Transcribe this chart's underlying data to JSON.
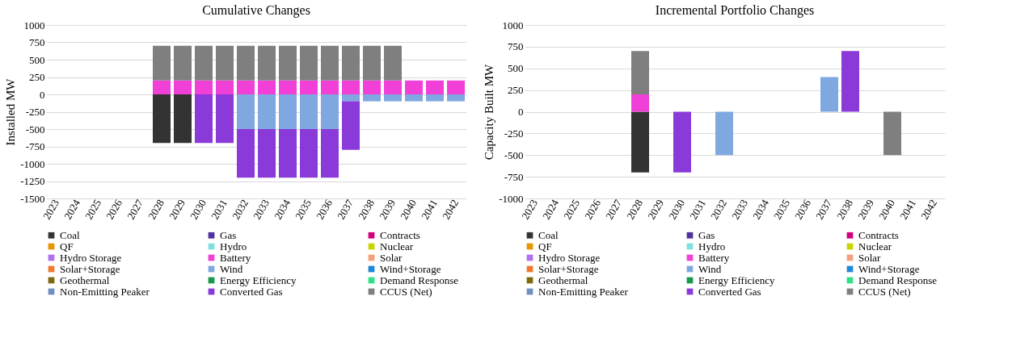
{
  "chart_data": [
    {
      "type": "bar",
      "title": "Cumulative Changes",
      "ylabel": "Installed MW",
      "stacked": true,
      "grid": "y",
      "legend": "bottom",
      "categories": [
        "2023",
        "2024",
        "2025",
        "2026",
        "2027",
        "2028",
        "2029",
        "2030",
        "2031",
        "2032",
        "2033",
        "2034",
        "2035",
        "2036",
        "2037",
        "2038",
        "2039",
        "2040",
        "2041",
        "2042"
      ],
      "ylim": [
        -1500,
        1000
      ],
      "yticks": [
        -1500,
        -1250,
        -1000,
        -750,
        -500,
        -250,
        0,
        250,
        500,
        750,
        1000
      ],
      "series": [
        {
          "name": "Coal",
          "color": "#333333",
          "values": [
            null,
            null,
            null,
            null,
            null,
            -700,
            -700,
            null,
            null,
            null,
            null,
            null,
            null,
            null,
            null,
            null,
            null,
            null,
            null,
            null
          ]
        },
        {
          "name": "Gas",
          "color": "#5030a0",
          "values": [
            null,
            null,
            null,
            null,
            null,
            null,
            null,
            null,
            null,
            null,
            null,
            null,
            null,
            null,
            null,
            null,
            null,
            null,
            null,
            null
          ]
        },
        {
          "name": "Contracts",
          "color": "#d0007f",
          "values": [
            null,
            null,
            null,
            null,
            null,
            null,
            null,
            null,
            null,
            null,
            null,
            null,
            null,
            null,
            null,
            null,
            null,
            null,
            null,
            null
          ]
        },
        {
          "name": "QF",
          "color": "#e69500",
          "values": [
            null,
            null,
            null,
            null,
            null,
            null,
            null,
            null,
            null,
            null,
            null,
            null,
            null,
            null,
            null,
            null,
            null,
            null,
            null,
            null
          ]
        },
        {
          "name": "Hydro",
          "color": "#80e0e0",
          "values": [
            null,
            null,
            null,
            null,
            null,
            null,
            null,
            null,
            null,
            null,
            null,
            null,
            null,
            null,
            null,
            null,
            null,
            null,
            null,
            null
          ]
        },
        {
          "name": "Nuclear",
          "color": "#c8d400",
          "values": [
            null,
            null,
            null,
            null,
            null,
            null,
            null,
            null,
            null,
            null,
            null,
            null,
            null,
            null,
            null,
            null,
            null,
            null,
            null,
            null
          ]
        },
        {
          "name": "Hydro Storage",
          "color": "#b070f0",
          "values": [
            null,
            null,
            null,
            null,
            null,
            null,
            null,
            null,
            null,
            null,
            null,
            null,
            null,
            null,
            null,
            null,
            null,
            null,
            null,
            null
          ]
        },
        {
          "name": "Battery",
          "color": "#f040d8",
          "values": [
            null,
            null,
            null,
            null,
            null,
            200,
            200,
            200,
            200,
            200,
            200,
            200,
            200,
            200,
            200,
            200,
            200,
            200,
            200,
            200
          ]
        },
        {
          "name": "Solar",
          "color": "#f4a07a",
          "values": [
            null,
            null,
            null,
            null,
            null,
            null,
            null,
            null,
            null,
            null,
            null,
            null,
            null,
            null,
            null,
            null,
            null,
            null,
            null,
            null
          ]
        },
        {
          "name": "Solar+Storage",
          "color": "#f07830",
          "values": [
            null,
            null,
            null,
            null,
            null,
            null,
            null,
            null,
            null,
            null,
            null,
            null,
            null,
            null,
            null,
            null,
            null,
            null,
            null,
            null
          ]
        },
        {
          "name": "Wind",
          "color": "#80a8e0",
          "values": [
            null,
            null,
            null,
            null,
            null,
            null,
            null,
            null,
            null,
            -500,
            -500,
            -500,
            -500,
            -500,
            -100,
            -100,
            -100,
            -100,
            -100,
            -100
          ]
        },
        {
          "name": "Wind+Storage",
          "color": "#1f88d8",
          "values": [
            null,
            null,
            null,
            null,
            null,
            null,
            null,
            null,
            null,
            null,
            null,
            null,
            null,
            null,
            null,
            null,
            null,
            null,
            null,
            null
          ]
        },
        {
          "name": "Geothermal",
          "color": "#806810",
          "values": [
            null,
            null,
            null,
            null,
            null,
            null,
            null,
            null,
            null,
            null,
            null,
            null,
            null,
            null,
            null,
            null,
            null,
            null,
            null,
            null
          ]
        },
        {
          "name": "Energy Efficiency",
          "color": "#1a9850",
          "values": [
            null,
            null,
            null,
            null,
            null,
            null,
            null,
            null,
            null,
            null,
            null,
            null,
            null,
            null,
            null,
            null,
            null,
            null,
            null,
            null
          ]
        },
        {
          "name": "Demand Response",
          "color": "#30e088",
          "values": [
            null,
            null,
            null,
            null,
            null,
            null,
            null,
            null,
            null,
            null,
            null,
            null,
            null,
            null,
            null,
            null,
            null,
            null,
            null,
            null
          ]
        },
        {
          "name": "Non-Emitting Peaker",
          "color": "#7090c0",
          "values": [
            null,
            null,
            null,
            null,
            null,
            null,
            null,
            null,
            null,
            null,
            null,
            null,
            null,
            null,
            null,
            null,
            null,
            null,
            null,
            null
          ]
        },
        {
          "name": "Converted Gas",
          "color": "#8a3ad8",
          "values": [
            null,
            null,
            null,
            null,
            null,
            null,
            null,
            -700,
            -700,
            -700,
            -700,
            -700,
            -700,
            -700,
            -700,
            null,
            null,
            null,
            null,
            null
          ]
        },
        {
          "name": "CCUS (Net)",
          "color": "#7f7f7f",
          "values": [
            null,
            null,
            null,
            null,
            null,
            500,
            500,
            500,
            500,
            500,
            500,
            500,
            500,
            500,
            500,
            500,
            500,
            null,
            null,
            null
          ]
        }
      ]
    },
    {
      "type": "bar",
      "title": "Incremental Portfolio Changes",
      "ylabel": "Capacity Built MW",
      "stacked": true,
      "grid": "y",
      "legend": "bottom",
      "categories": [
        "2023",
        "2024",
        "2025",
        "2026",
        "2027",
        "2028",
        "2029",
        "2030",
        "2031",
        "2032",
        "2033",
        "2034",
        "2035",
        "2036",
        "2037",
        "2038",
        "2039",
        "2040",
        "2041",
        "2042"
      ],
      "ylim": [
        -1000,
        1000
      ],
      "yticks": [
        -1000,
        -750,
        -500,
        -250,
        0,
        250,
        500,
        750,
        1000
      ],
      "series": [
        {
          "name": "Coal",
          "color": "#333333",
          "values": [
            null,
            null,
            null,
            null,
            null,
            -700,
            null,
            null,
            null,
            null,
            null,
            null,
            null,
            null,
            null,
            null,
            null,
            null,
            null,
            null
          ]
        },
        {
          "name": "Gas",
          "color": "#5030a0",
          "values": [
            null,
            null,
            null,
            null,
            null,
            null,
            null,
            null,
            null,
            null,
            null,
            null,
            null,
            null,
            null,
            null,
            null,
            null,
            null,
            null
          ]
        },
        {
          "name": "Contracts",
          "color": "#d0007f",
          "values": [
            null,
            null,
            null,
            null,
            null,
            null,
            null,
            null,
            null,
            null,
            null,
            null,
            null,
            null,
            null,
            null,
            null,
            null,
            null,
            null
          ]
        },
        {
          "name": "QF",
          "color": "#e69500",
          "values": [
            null,
            null,
            null,
            null,
            null,
            null,
            null,
            null,
            null,
            null,
            null,
            null,
            null,
            null,
            null,
            null,
            null,
            null,
            null,
            null
          ]
        },
        {
          "name": "Hydro",
          "color": "#80e0e0",
          "values": [
            null,
            null,
            null,
            null,
            null,
            null,
            null,
            null,
            null,
            null,
            null,
            null,
            null,
            null,
            null,
            null,
            null,
            null,
            null,
            null
          ]
        },
        {
          "name": "Nuclear",
          "color": "#c8d400",
          "values": [
            null,
            null,
            null,
            null,
            null,
            null,
            null,
            null,
            null,
            null,
            null,
            null,
            null,
            null,
            null,
            null,
            null,
            null,
            null,
            null
          ]
        },
        {
          "name": "Hydro Storage",
          "color": "#b070f0",
          "values": [
            null,
            null,
            null,
            null,
            null,
            null,
            null,
            null,
            null,
            null,
            null,
            null,
            null,
            null,
            null,
            null,
            null,
            null,
            null,
            null
          ]
        },
        {
          "name": "Battery",
          "color": "#f040d8",
          "values": [
            null,
            null,
            null,
            null,
            null,
            200,
            null,
            null,
            null,
            null,
            null,
            null,
            null,
            null,
            null,
            null,
            null,
            null,
            null,
            null
          ]
        },
        {
          "name": "Solar",
          "color": "#f4a07a",
          "values": [
            null,
            null,
            null,
            null,
            null,
            null,
            null,
            null,
            null,
            null,
            null,
            null,
            null,
            null,
            null,
            null,
            null,
            null,
            null,
            null
          ]
        },
        {
          "name": "Solar+Storage",
          "color": "#f07830",
          "values": [
            null,
            null,
            null,
            null,
            null,
            null,
            null,
            null,
            null,
            null,
            null,
            null,
            null,
            null,
            null,
            null,
            null,
            null,
            null,
            null
          ]
        },
        {
          "name": "Wind",
          "color": "#80a8e0",
          "values": [
            null,
            null,
            null,
            null,
            null,
            null,
            null,
            null,
            null,
            -500,
            null,
            null,
            null,
            null,
            400,
            null,
            null,
            null,
            null,
            null
          ]
        },
        {
          "name": "Wind+Storage",
          "color": "#1f88d8",
          "values": [
            null,
            null,
            null,
            null,
            null,
            null,
            null,
            null,
            null,
            null,
            null,
            null,
            null,
            null,
            null,
            null,
            null,
            null,
            null,
            null
          ]
        },
        {
          "name": "Geothermal",
          "color": "#806810",
          "values": [
            null,
            null,
            null,
            null,
            null,
            null,
            null,
            null,
            null,
            null,
            null,
            null,
            null,
            null,
            null,
            null,
            null,
            null,
            null,
            null
          ]
        },
        {
          "name": "Energy Efficiency",
          "color": "#1a9850",
          "values": [
            null,
            null,
            null,
            null,
            null,
            null,
            null,
            null,
            null,
            null,
            null,
            null,
            null,
            null,
            null,
            null,
            null,
            null,
            null,
            null
          ]
        },
        {
          "name": "Demand Response",
          "color": "#30e088",
          "values": [
            null,
            null,
            null,
            null,
            null,
            null,
            null,
            null,
            null,
            null,
            null,
            null,
            null,
            null,
            null,
            null,
            null,
            null,
            null,
            null
          ]
        },
        {
          "name": "Non-Emitting Peaker",
          "color": "#7090c0",
          "values": [
            null,
            null,
            null,
            null,
            null,
            null,
            null,
            null,
            null,
            null,
            null,
            null,
            null,
            null,
            null,
            null,
            null,
            null,
            null,
            null
          ]
        },
        {
          "name": "Converted Gas",
          "color": "#8a3ad8",
          "values": [
            null,
            null,
            null,
            null,
            null,
            null,
            null,
            -700,
            null,
            null,
            null,
            null,
            null,
            null,
            null,
            700,
            null,
            null,
            null,
            null
          ]
        },
        {
          "name": "CCUS (Net)",
          "color": "#7f7f7f",
          "values": [
            null,
            null,
            null,
            null,
            null,
            500,
            null,
            null,
            null,
            null,
            null,
            null,
            null,
            null,
            null,
            null,
            null,
            -500,
            null,
            null
          ]
        }
      ]
    }
  ]
}
